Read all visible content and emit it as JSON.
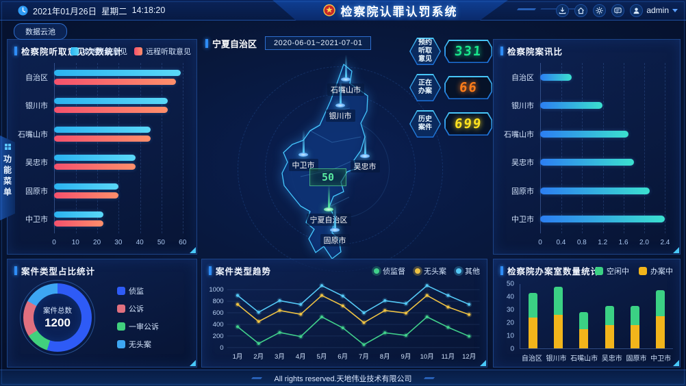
{
  "header": {
    "date": "2021年01月26日",
    "weekday": "星期二",
    "time": "14:18:20",
    "title": "检察院认罪认罚系统",
    "user": "admin",
    "icons": [
      "download",
      "home",
      "settings",
      "message",
      "user"
    ]
  },
  "toolbar": {
    "data_cloud_label": "数据云池"
  },
  "side_tab": {
    "label": "功能菜单"
  },
  "region": {
    "name": "宁夏自治区",
    "date_range": "2020-06-01~2021-07-01",
    "map_tooltip_value": "50",
    "cities": [
      "石嘴山市",
      "银川市",
      "中卫市",
      "吴忠市",
      "宁夏自治区",
      "固原市"
    ]
  },
  "stats": [
    {
      "label": "预约听取意见",
      "value": "331",
      "color": "#19e68c"
    },
    {
      "label": "正在办案",
      "value": "66",
      "color": "#ff7d1a"
    },
    {
      "label": "历史案件",
      "value": "699",
      "color": "#ffe21f"
    }
  ],
  "footer": {
    "copyright": "All rights reserved.天地伟业技术有限公司"
  },
  "chart_data": [
    {
      "id": "hearings",
      "type": "bar",
      "orientation": "horizontal",
      "title": "检察院听取意见次数统计",
      "categories": [
        "自治区",
        "银川市",
        "石嘴山市",
        "吴忠市",
        "固原市",
        "中卫市"
      ],
      "series": [
        {
          "name": "本地听取意见",
          "color_from": "#2bb3f0",
          "color_to": "#5ad8f8",
          "values": [
            59,
            53,
            45,
            38,
            30,
            23
          ]
        },
        {
          "name": "远程听取意见",
          "color_from": "#f4516c",
          "color_to": "#ff8f6b",
          "values": [
            57,
            53,
            45,
            38,
            30,
            23
          ]
        }
      ],
      "xticks": [
        "0",
        "10",
        "20",
        "30",
        "40",
        "50",
        "60"
      ],
      "xmax": 62,
      "grid": true,
      "legend_position": "top-right"
    },
    {
      "id": "ratio",
      "type": "bar",
      "orientation": "horizontal",
      "title": "检察院案讯比",
      "categories": [
        "自治区",
        "银川市",
        "石嘴山市",
        "吴忠市",
        "固原市",
        "中卫市"
      ],
      "series": [
        {
          "name": "案讯比",
          "color_from": "#2c7ef2",
          "color_to": "#3be0cf",
          "values": [
            0.6,
            1.2,
            1.7,
            1.8,
            2.1,
            2.4
          ]
        }
      ],
      "xticks": [
        "0",
        "0.4",
        "0.8",
        "1.2",
        "1.6",
        "2.0",
        "2.4"
      ],
      "xmax": 2.5,
      "grid": true
    },
    {
      "id": "case_types",
      "type": "pie",
      "title": "案件类型占比统计",
      "center_label": "案件总数",
      "total": "1200",
      "slices": [
        {
          "name": "侦监",
          "value": 55,
          "color": "#2e5bf6"
        },
        {
          "name": "公诉",
          "value": 17,
          "color": "#e0707f"
        },
        {
          "name": "一审公诉",
          "value": 11,
          "color": "#41d07d"
        },
        {
          "name": "无头案",
          "value": 17,
          "color": "#3da6f2"
        }
      ],
      "draw_order": [
        0,
        2,
        1,
        3
      ],
      "legend_position": "right"
    },
    {
      "id": "case_trend",
      "type": "line",
      "title": "案件类型趋势",
      "categories": [
        "1月",
        "2月",
        "3月",
        "4月",
        "5月",
        "6月",
        "7月",
        "8月",
        "9月",
        "10月",
        "11月",
        "12月"
      ],
      "series": [
        {
          "name": "侦监督",
          "color": "#41d08b",
          "values": [
            360,
            70,
            260,
            190,
            530,
            340,
            50,
            255,
            210,
            530,
            350,
            195
          ]
        },
        {
          "name": "无头案",
          "color": "#eec243",
          "values": [
            745,
            450,
            640,
            575,
            900,
            720,
            430,
            640,
            595,
            900,
            700,
            570
          ]
        },
        {
          "name": "其他",
          "color": "#54c8f5",
          "values": [
            900,
            610,
            810,
            745,
            1070,
            890,
            600,
            810,
            760,
            1070,
            900,
            745
          ]
        }
      ],
      "yticks": [
        0,
        200,
        400,
        600,
        800,
        1000
      ],
      "ymax": 1120,
      "grid": true,
      "legend_position": "top-right"
    },
    {
      "id": "case_rooms",
      "type": "bar",
      "orientation": "vertical",
      "stacked": true,
      "title": "检察院办案室数量统计",
      "categories": [
        "自治区",
        "银川市",
        "石嘴山市",
        "吴忠市",
        "固原市",
        "中卫市"
      ],
      "series": [
        {
          "name": "空闲中",
          "color": "#3bd184",
          "values": [
            19,
            22,
            13,
            15,
            15,
            20
          ]
        },
        {
          "name": "办案中",
          "color": "#f2b51b",
          "values": [
            24,
            26,
            15,
            18,
            18,
            25
          ]
        }
      ],
      "yticks": [
        0,
        10,
        20,
        30,
        40,
        50
      ],
      "ymax": 50,
      "legend_position": "top-right"
    }
  ]
}
